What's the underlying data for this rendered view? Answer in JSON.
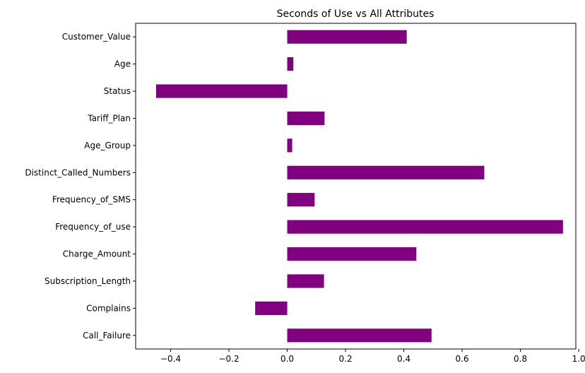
{
  "chart_data": {
    "type": "bar",
    "orientation": "horizontal",
    "title": "Seconds of Use vs All Attributes",
    "xlabel": "",
    "ylabel": "",
    "categories": [
      "Call_Failure",
      "Complains",
      "Subscription_Length",
      "Charge_Amount",
      "Frequency_of_use",
      "Frequency_of_SMS",
      "Distinct_Called_Numbers",
      "Age_Group",
      "Tariff_Plan",
      "Status",
      "Age",
      "Customer_Value"
    ],
    "values": [
      0.495,
      -0.11,
      0.126,
      0.443,
      0.946,
      0.094,
      0.676,
      0.017,
      0.128,
      -0.45,
      0.021,
      0.41
    ],
    "xlim": [
      -0.52,
      0.99
    ],
    "xticks": [
      -0.4,
      -0.2,
      0.0,
      0.2,
      0.4,
      0.6,
      0.8,
      1.0
    ],
    "xtick_labels": [
      "−0.4",
      "−0.2",
      "0.0",
      "0.2",
      "0.4",
      "0.6",
      "0.8",
      "1.0"
    ],
    "bar_color": "#800080",
    "grid": false,
    "legend": false
  }
}
